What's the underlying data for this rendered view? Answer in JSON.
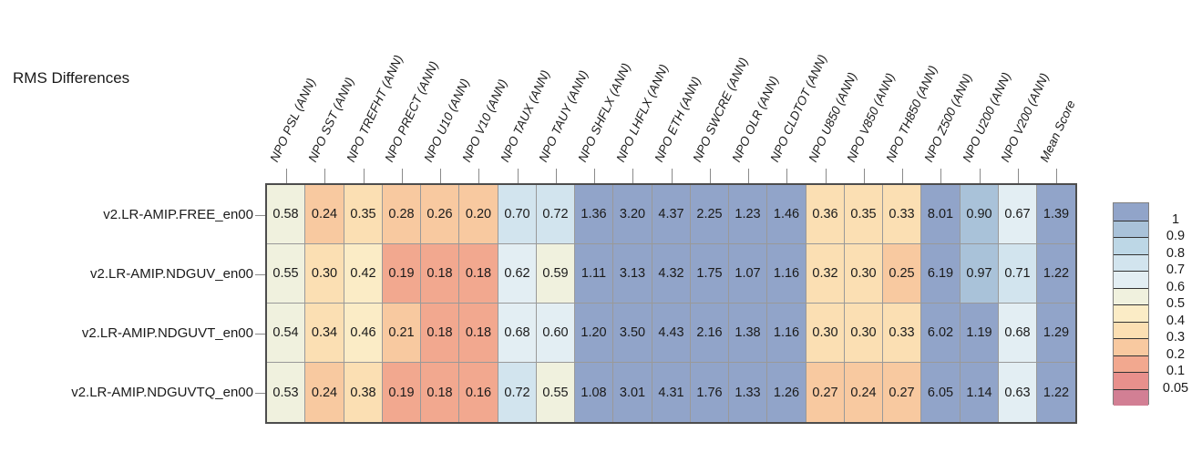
{
  "title": "RMS Differences",
  "colors": {
    "grid_line": "#999999",
    "grid_border": "#4d4d4d",
    "tick": "#8a8a8a",
    "text": "#1a1a1a",
    "band_colors": [
      "#91A4C9",
      "#A9C2D9",
      "#BDD7E6",
      "#D2E4EE",
      "#E3EEF3",
      "#F0F1DE",
      "#FBECC6",
      "#FBDFB3",
      "#F8C9A0",
      "#F2A88F",
      "#E8908C",
      "#D27F94"
    ],
    "thresholds": [
      1,
      0.9,
      0.8,
      0.7,
      0.6,
      0.5,
      0.4,
      0.3,
      0.2,
      0.1,
      0.05
    ]
  },
  "chart_data": {
    "type": "heatmap",
    "title": "RMS Differences",
    "columns": [
      "NPO PSL (ANN)",
      "NPO SST (ANN)",
      "NPO TREFHT (ANN)",
      "NPO PRECT (ANN)",
      "NPO U10 (ANN)",
      "NPO V10 (ANN)",
      "NPO TAUX (ANN)",
      "NPO TAUY (ANN)",
      "NPO SHFLX (ANN)",
      "NPO LHFLX (ANN)",
      "NPO ETH (ANN)",
      "NPO SWCRE (ANN)",
      "NPO OLR (ANN)",
      "NPO CLDTOT (ANN)",
      "NPO U850 (ANN)",
      "NPO V850 (ANN)",
      "NPO TH850 (ANN)",
      "NPO Z500 (ANN)",
      "NPO U200 (ANN)",
      "NPO V200 (ANN)",
      "Mean Score"
    ],
    "rows": [
      "v2.LR-AMIP.FREE_en00",
      "v2.LR-AMIP.NDGUV_en00",
      "v2.LR-AMIP.NDGUVT_en00",
      "v2.LR-AMIP.NDGUVTQ_en00"
    ],
    "values": [
      [
        0.58,
        0.24,
        0.35,
        0.28,
        0.26,
        0.2,
        0.7,
        0.72,
        1.36,
        3.2,
        4.37,
        2.25,
        1.23,
        1.46,
        0.36,
        0.35,
        0.33,
        8.01,
        0.9,
        0.67,
        1.39
      ],
      [
        0.55,
        0.3,
        0.42,
        0.19,
        0.18,
        0.18,
        0.62,
        0.59,
        1.11,
        3.13,
        4.32,
        1.75,
        1.07,
        1.16,
        0.32,
        0.3,
        0.25,
        6.19,
        0.97,
        0.71,
        1.22
      ],
      [
        0.54,
        0.34,
        0.46,
        0.21,
        0.18,
        0.18,
        0.68,
        0.6,
        1.2,
        3.5,
        4.43,
        2.16,
        1.38,
        1.16,
        0.3,
        0.3,
        0.33,
        6.02,
        1.19,
        0.68,
        1.29
      ],
      [
        0.53,
        0.24,
        0.38,
        0.19,
        0.18,
        0.16,
        0.72,
        0.55,
        1.08,
        3.01,
        4.31,
        1.76,
        1.33,
        1.26,
        0.27,
        0.24,
        0.27,
        6.05,
        1.14,
        0.63,
        1.22
      ]
    ],
    "value_format": "2-decimals",
    "legend": {
      "position": "right",
      "labels": [
        "1",
        "0.9",
        "0.8",
        "0.7",
        "0.6",
        "0.5",
        "0.4",
        "0.3",
        "0.2",
        "0.1",
        "0.05"
      ]
    },
    "layout_hints": {
      "column_labels_rotation_deg": 65,
      "grid": "on",
      "colormap_saturates_above": 1
    }
  }
}
